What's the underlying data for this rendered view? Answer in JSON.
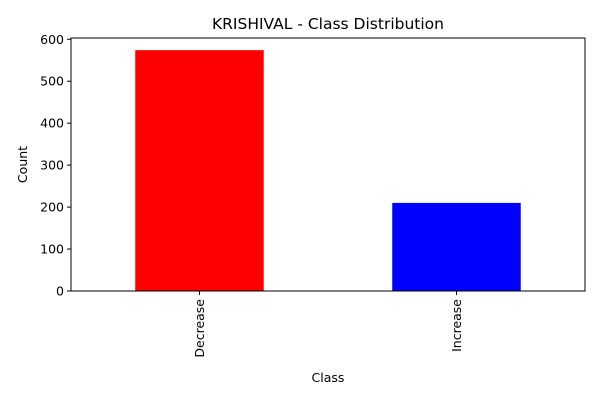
{
  "chart_data": {
    "type": "bar",
    "title": "KRISHIVAL - Class Distribution",
    "xlabel": "Class",
    "ylabel": "Count",
    "categories": [
      "Decrease",
      "Increase"
    ],
    "values": [
      574,
      210
    ],
    "colors": [
      "#ff0000",
      "#0000ff"
    ],
    "ylim": [
      0,
      603
    ],
    "yticks": [
      0,
      100,
      200,
      300,
      400,
      500,
      600
    ],
    "x_tick_rotation": 90,
    "grid": false,
    "legend": "none"
  }
}
